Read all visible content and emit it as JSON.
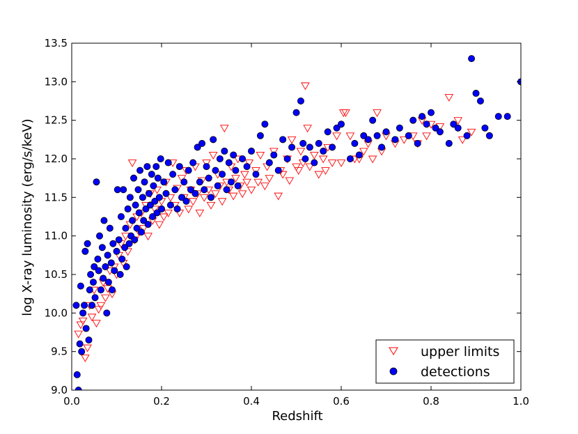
{
  "chart_data": {
    "type": "scatter",
    "xlabel": "Redshift",
    "ylabel": "log X-ray luminosity (erg/s/keV)",
    "xlim": [
      0.0,
      1.0
    ],
    "ylim": [
      9.0,
      13.5
    ],
    "x_ticks": [
      "0.0",
      "0.2",
      "0.4",
      "0.6",
      "0.8",
      "1.0"
    ],
    "y_ticks": [
      "9.0",
      "9.5",
      "10.0",
      "10.5",
      "11.0",
      "11.5",
      "12.0",
      "12.5",
      "13.0",
      "13.5"
    ],
    "grid": false,
    "legend_position": "bottom-right",
    "series": [
      {
        "name": "upper limits",
        "marker": "triangle-down-open",
        "color": "#ff0000",
        "points": [
          [
            0.015,
            9.73
          ],
          [
            0.02,
            9.85
          ],
          [
            0.025,
            9.9
          ],
          [
            0.03,
            9.42
          ],
          [
            0.035,
            9.55
          ],
          [
            0.04,
            10.1
          ],
          [
            0.045,
            9.95
          ],
          [
            0.05,
            10.3
          ],
          [
            0.055,
            9.87
          ],
          [
            0.06,
            10.05
          ],
          [
            0.065,
            10.1
          ],
          [
            0.07,
            10.4
          ],
          [
            0.075,
            10.2
          ],
          [
            0.08,
            10.32
          ],
          [
            0.085,
            10.55
          ],
          [
            0.09,
            10.25
          ],
          [
            0.095,
            10.6
          ],
          [
            0.1,
            10.5
          ],
          [
            0.105,
            10.75
          ],
          [
            0.11,
            10.9
          ],
          [
            0.115,
            10.65
          ],
          [
            0.12,
            11.0
          ],
          [
            0.125,
            10.8
          ],
          [
            0.13,
            11.15
          ],
          [
            0.135,
            11.95
          ],
          [
            0.14,
            10.95
          ],
          [
            0.145,
            11.25
          ],
          [
            0.15,
            11.05
          ],
          [
            0.155,
            11.3
          ],
          [
            0.16,
            11.1
          ],
          [
            0.165,
            11.4
          ],
          [
            0.17,
            11.0
          ],
          [
            0.175,
            11.55
          ],
          [
            0.18,
            11.2
          ],
          [
            0.185,
            11.35
          ],
          [
            0.19,
            11.6
          ],
          [
            0.195,
            11.15
          ],
          [
            0.2,
            11.45
          ],
          [
            0.205,
            11.25
          ],
          [
            0.21,
            11.7
          ],
          [
            0.215,
            11.3
          ],
          [
            0.22,
            11.5
          ],
          [
            0.225,
            11.95
          ],
          [
            0.23,
            11.4
          ],
          [
            0.235,
            11.62
          ],
          [
            0.24,
            11.3
          ],
          [
            0.245,
            11.75
          ],
          [
            0.25,
            11.5
          ],
          [
            0.255,
            11.85
          ],
          [
            0.26,
            11.35
          ],
          [
            0.265,
            11.6
          ],
          [
            0.27,
            11.45
          ],
          [
            0.275,
            11.9
          ],
          [
            0.28,
            11.55
          ],
          [
            0.285,
            11.3
          ],
          [
            0.29,
            11.72
          ],
          [
            0.295,
            11.5
          ],
          [
            0.3,
            11.95
          ],
          [
            0.305,
            11.6
          ],
          [
            0.31,
            11.4
          ],
          [
            0.315,
            12.05
          ],
          [
            0.32,
            11.55
          ],
          [
            0.325,
            11.8
          ],
          [
            0.33,
            11.65
          ],
          [
            0.335,
            11.45
          ],
          [
            0.34,
            12.4
          ],
          [
            0.345,
            11.7
          ],
          [
            0.35,
            11.6
          ],
          [
            0.355,
            11.9
          ],
          [
            0.36,
            11.52
          ],
          [
            0.365,
            11.75
          ],
          [
            0.37,
            12.0
          ],
          [
            0.375,
            11.65
          ],
          [
            0.38,
            11.55
          ],
          [
            0.385,
            11.8
          ],
          [
            0.39,
            11.7
          ],
          [
            0.395,
            11.95
          ],
          [
            0.4,
            11.6
          ],
          [
            0.41,
            11.85
          ],
          [
            0.415,
            11.7
          ],
          [
            0.42,
            12.05
          ],
          [
            0.43,
            11.65
          ],
          [
            0.435,
            11.9
          ],
          [
            0.44,
            11.75
          ],
          [
            0.45,
            12.1
          ],
          [
            0.46,
            11.52
          ],
          [
            0.465,
            11.85
          ],
          [
            0.47,
            11.8
          ],
          [
            0.48,
            12.0
          ],
          [
            0.485,
            11.72
          ],
          [
            0.49,
            12.25
          ],
          [
            0.5,
            11.9
          ],
          [
            0.505,
            11.85
          ],
          [
            0.51,
            12.1
          ],
          [
            0.515,
            11.95
          ],
          [
            0.52,
            12.95
          ],
          [
            0.525,
            12.4
          ],
          [
            0.53,
            11.9
          ],
          [
            0.54,
            12.05
          ],
          [
            0.55,
            11.8
          ],
          [
            0.56,
            12.0
          ],
          [
            0.565,
            11.85
          ],
          [
            0.57,
            12.15
          ],
          [
            0.58,
            11.95
          ],
          [
            0.59,
            12.3
          ],
          [
            0.6,
            11.95
          ],
          [
            0.605,
            12.6
          ],
          [
            0.61,
            12.6
          ],
          [
            0.62,
            12.3
          ],
          [
            0.63,
            12.0
          ],
          [
            0.64,
            12.0
          ],
          [
            0.65,
            12.1
          ],
          [
            0.66,
            12.2
          ],
          [
            0.67,
            12.0
          ],
          [
            0.68,
            12.6
          ],
          [
            0.69,
            12.1
          ],
          [
            0.7,
            12.3
          ],
          [
            0.72,
            12.2
          ],
          [
            0.74,
            12.25
          ],
          [
            0.76,
            12.3
          ],
          [
            0.77,
            12.2
          ],
          [
            0.78,
            12.5
          ],
          [
            0.79,
            12.3
          ],
          [
            0.8,
            12.45
          ],
          [
            0.82,
            12.42
          ],
          [
            0.84,
            12.8
          ],
          [
            0.86,
            12.5
          ],
          [
            0.87,
            12.25
          ],
          [
            0.89,
            12.35
          ]
        ]
      },
      {
        "name": "detections",
        "marker": "circle-filled",
        "color": "#0000ff",
        "points": [
          [
            0.01,
            10.1
          ],
          [
            0.012,
            9.2
          ],
          [
            0.015,
            9.0
          ],
          [
            0.018,
            9.6
          ],
          [
            0.02,
            10.35
          ],
          [
            0.022,
            9.5
          ],
          [
            0.025,
            10.0
          ],
          [
            0.028,
            10.1
          ],
          [
            0.03,
            10.8
          ],
          [
            0.032,
            9.8
          ],
          [
            0.035,
            10.9
          ],
          [
            0.038,
            9.65
          ],
          [
            0.04,
            10.3
          ],
          [
            0.042,
            10.5
          ],
          [
            0.045,
            10.1
          ],
          [
            0.048,
            10.4
          ],
          [
            0.05,
            10.6
          ],
          [
            0.052,
            10.2
          ],
          [
            0.055,
            11.7
          ],
          [
            0.058,
            10.7
          ],
          [
            0.06,
            10.55
          ],
          [
            0.062,
            11.0
          ],
          [
            0.065,
            10.3
          ],
          [
            0.068,
            10.85
          ],
          [
            0.07,
            10.45
          ],
          [
            0.072,
            11.2
          ],
          [
            0.075,
            10.6
          ],
          [
            0.078,
            10.0
          ],
          [
            0.08,
            10.75
          ],
          [
            0.082,
            10.4
          ],
          [
            0.085,
            11.1
          ],
          [
            0.088,
            10.65
          ],
          [
            0.09,
            10.3
          ],
          [
            0.092,
            10.9
          ],
          [
            0.095,
            10.55
          ],
          [
            0.1,
            10.8
          ],
          [
            0.102,
            11.6
          ],
          [
            0.105,
            10.95
          ],
          [
            0.108,
            10.5
          ],
          [
            0.11,
            11.25
          ],
          [
            0.112,
            10.7
          ],
          [
            0.115,
            11.6
          ],
          [
            0.118,
            10.85
          ],
          [
            0.12,
            11.1
          ],
          [
            0.122,
            10.6
          ],
          [
            0.125,
            11.35
          ],
          [
            0.128,
            10.9
          ],
          [
            0.13,
            11.5
          ],
          [
            0.132,
            11.0
          ],
          [
            0.135,
            11.2
          ],
          [
            0.138,
            11.75
          ],
          [
            0.14,
            10.95
          ],
          [
            0.142,
            11.4
          ],
          [
            0.145,
            11.1
          ],
          [
            0.148,
            11.6
          ],
          [
            0.15,
            11.3
          ],
          [
            0.152,
            11.85
          ],
          [
            0.155,
            11.05
          ],
          [
            0.158,
            11.5
          ],
          [
            0.16,
            11.2
          ],
          [
            0.162,
            11.7
          ],
          [
            0.165,
            11.35
          ],
          [
            0.168,
            11.9
          ],
          [
            0.17,
            11.15
          ],
          [
            0.172,
            11.55
          ],
          [
            0.175,
            11.4
          ],
          [
            0.178,
            11.8
          ],
          [
            0.18,
            11.25
          ],
          [
            0.182,
            11.65
          ],
          [
            0.185,
            11.45
          ],
          [
            0.188,
            11.9
          ],
          [
            0.19,
            11.3
          ],
          [
            0.192,
            11.75
          ],
          [
            0.195,
            11.5
          ],
          [
            0.198,
            12.0
          ],
          [
            0.2,
            11.35
          ],
          [
            0.205,
            11.7
          ],
          [
            0.21,
            11.55
          ],
          [
            0.215,
            11.95
          ],
          [
            0.22,
            11.4
          ],
          [
            0.225,
            11.8
          ],
          [
            0.23,
            11.6
          ],
          [
            0.235,
            11.35
          ],
          [
            0.24,
            11.9
          ],
          [
            0.245,
            11.5
          ],
          [
            0.25,
            11.7
          ],
          [
            0.255,
            11.45
          ],
          [
            0.26,
            11.85
          ],
          [
            0.265,
            11.6
          ],
          [
            0.27,
            11.95
          ],
          [
            0.275,
            11.55
          ],
          [
            0.28,
            12.15
          ],
          [
            0.285,
            11.7
          ],
          [
            0.29,
            12.2
          ],
          [
            0.295,
            11.6
          ],
          [
            0.3,
            11.9
          ],
          [
            0.305,
            11.75
          ],
          [
            0.31,
            11.5
          ],
          [
            0.315,
            12.25
          ],
          [
            0.32,
            11.85
          ],
          [
            0.325,
            11.65
          ],
          [
            0.33,
            12.0
          ],
          [
            0.335,
            11.8
          ],
          [
            0.34,
            12.1
          ],
          [
            0.345,
            11.6
          ],
          [
            0.35,
            11.95
          ],
          [
            0.355,
            11.7
          ],
          [
            0.36,
            12.05
          ],
          [
            0.365,
            11.85
          ],
          [
            0.37,
            11.65
          ],
          [
            0.38,
            12.0
          ],
          [
            0.39,
            11.9
          ],
          [
            0.4,
            12.1
          ],
          [
            0.41,
            11.8
          ],
          [
            0.42,
            12.3
          ],
          [
            0.43,
            12.45
          ],
          [
            0.44,
            11.95
          ],
          [
            0.45,
            12.05
          ],
          [
            0.46,
            11.85
          ],
          [
            0.47,
            12.25
          ],
          [
            0.48,
            12.0
          ],
          [
            0.49,
            12.15
          ],
          [
            0.5,
            12.6
          ],
          [
            0.51,
            12.75
          ],
          [
            0.515,
            12.2
          ],
          [
            0.52,
            12.0
          ],
          [
            0.53,
            12.15
          ],
          [
            0.54,
            11.95
          ],
          [
            0.55,
            12.2
          ],
          [
            0.56,
            12.1
          ],
          [
            0.57,
            12.35
          ],
          [
            0.58,
            12.15
          ],
          [
            0.59,
            12.4
          ],
          [
            0.6,
            12.45
          ],
          [
            0.62,
            12.0
          ],
          [
            0.63,
            12.2
          ],
          [
            0.64,
            12.05
          ],
          [
            0.65,
            12.3
          ],
          [
            0.66,
            12.25
          ],
          [
            0.67,
            12.5
          ],
          [
            0.68,
            12.3
          ],
          [
            0.69,
            12.15
          ],
          [
            0.7,
            12.35
          ],
          [
            0.72,
            12.25
          ],
          [
            0.73,
            12.4
          ],
          [
            0.75,
            12.3
          ],
          [
            0.76,
            12.5
          ],
          [
            0.77,
            12.2
          ],
          [
            0.78,
            12.55
          ],
          [
            0.79,
            12.45
          ],
          [
            0.8,
            12.6
          ],
          [
            0.81,
            12.4
          ],
          [
            0.82,
            12.35
          ],
          [
            0.84,
            12.2
          ],
          [
            0.85,
            12.45
          ],
          [
            0.86,
            12.4
          ],
          [
            0.88,
            12.3
          ],
          [
            0.89,
            13.3
          ],
          [
            0.9,
            12.85
          ],
          [
            0.91,
            12.75
          ],
          [
            0.92,
            12.4
          ],
          [
            0.93,
            12.3
          ],
          [
            0.95,
            12.55
          ],
          [
            0.97,
            12.55
          ],
          [
            1.0,
            13.0
          ]
        ]
      }
    ]
  }
}
